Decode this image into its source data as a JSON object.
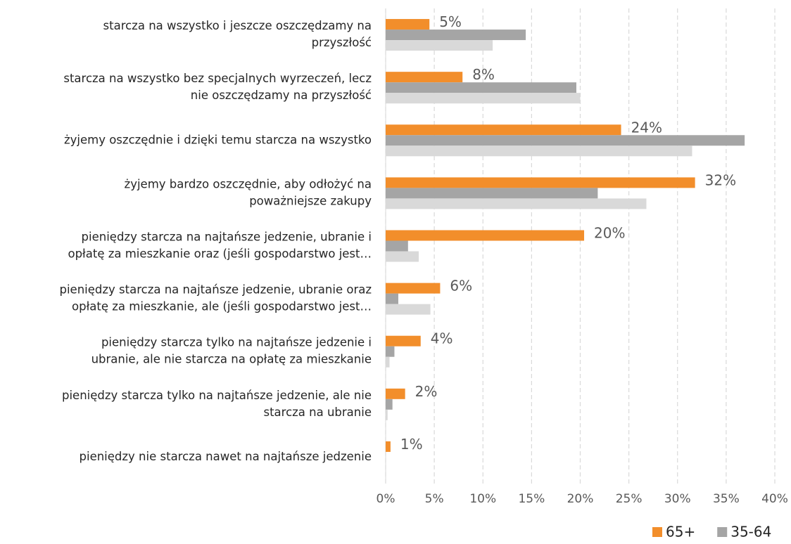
{
  "chart_data": {
    "type": "barh",
    "categories": [
      [
        "starcza na wszystko i jeszcze oszczędzamy na",
        "przyszłość"
      ],
      [
        "starcza na wszystko bez specjalnych wyrzeczeń, lecz",
        "nie oszczędzamy na przyszłość"
      ],
      [
        "żyjemy oszczędnie i dzięki temu starcza na wszystko"
      ],
      [
        "żyjemy bardzo oszczędnie, aby odłożyć na",
        "poważniejsze zakupy"
      ],
      [
        "pieniędzy starcza na najtańsze jedzenie, ubranie i",
        "opłatę za mieszkanie oraz (jeśli gospodarstwo jest…"
      ],
      [
        "pieniędzy starcza na najtańsze jedzenie, ubranie oraz",
        "opłatę za mieszkanie, ale (jeśli gospodarstwo jest…"
      ],
      [
        "pieniędzy starcza tylko na najtańsze jedzenie i",
        "ubranie, ale nie starcza na opłatę za mieszkanie"
      ],
      [
        "pieniędzy starcza tylko na najtańsze jedzenie, ale nie",
        "starcza na ubranie"
      ],
      [
        "pieniędzy nie starcza nawet na najtańsze jedzenie"
      ]
    ],
    "series": [
      {
        "name": "65+",
        "color": "#f28e2b",
        "values": [
          4.5,
          7.9,
          24.2,
          31.8,
          20.4,
          5.6,
          3.6,
          2.0,
          0.5
        ],
        "value_labels": [
          "5%",
          "8%",
          "24%",
          "32%",
          "20%",
          "6%",
          "4%",
          "2%",
          "1%"
        ]
      },
      {
        "name": "35-64",
        "color": "#a5a5a5",
        "values": [
          14.4,
          19.6,
          36.9,
          21.8,
          2.3,
          1.3,
          0.9,
          0.7,
          0
        ]
      },
      {
        "color": "#d9d9d9",
        "values": [
          11.0,
          20.0,
          31.5,
          26.8,
          3.4,
          4.6,
          0.4,
          0.2,
          0
        ]
      }
    ],
    "xlim": [
      0,
      40
    ],
    "xticks": [
      {
        "value": 0,
        "label": "0%"
      },
      {
        "value": 5,
        "label": "5%"
      },
      {
        "value": 10,
        "label": "10%"
      },
      {
        "value": 15,
        "label": "15%"
      },
      {
        "value": 20,
        "label": "20%"
      },
      {
        "value": 25,
        "label": "25%"
      },
      {
        "value": 30,
        "label": "30%"
      },
      {
        "value": 35,
        "label": "35%"
      },
      {
        "value": 40,
        "label": "40%"
      }
    ],
    "grid": true,
    "legend": "bottom-right"
  }
}
